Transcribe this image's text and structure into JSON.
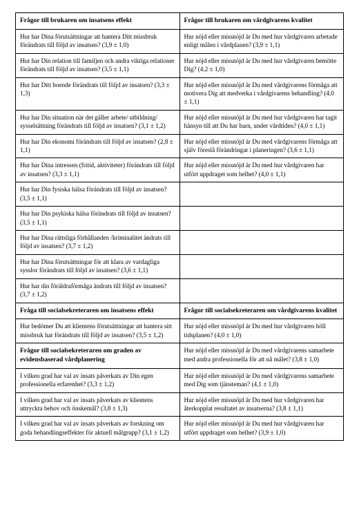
{
  "table": {
    "section1": {
      "header_left": "Frågor till brukaren om insatsens effekt",
      "header_right": "Frågor till brukaren om vårdgivarens kvalitet",
      "rows": [
        {
          "left": "Hur har Dina förutsättningar att hantera Ditt miss­bruk förändrats till följd av insatsen? (3,9 ± 1,0)",
          "right": "Hur nöjd eller missnöjd är Du med hur vårdgiva­ren arbetade enligt målen i vårdplanen? (3,9 ± 1,1)"
        },
        {
          "left": "Hur har Din relation till familjen och andra viktiga relationer förändrats till följd av insatsen? (3,5 ± 1,1)",
          "right": "Hur nöjd eller missnöjd är Du med hur vårdgiva­ren bemötte Dig? (4,2 ± 1,0)"
        },
        {
          "left": "Hur har Ditt boende förändrats till följd av insatsen? (3,3 ± 1,3)",
          "right": "Hur nöjd eller missnöjd är Du med vårdgivarens förmåga att motivera Dig att medverka i vårdgiva­rens behandling? (4,0 ± 1,1)"
        },
        {
          "left": "Hur har Din situation när det gäller arbete/ utbildning/ sysselsättning förändrats till följd av insatsen? (3,1 ± 1,2)",
          "right": "Hur nöjd eller missnöjd är Du med hur vårdgi­varen har tagit hänsyn till att Du har barn, under vårdtiden? (4,0 ± 1,1)"
        },
        {
          "left": "Hur har Din ekonomi förändrats till följd av insatsen? (2,8 ± 1,1)",
          "right": "Hur nöjd eller missnöjd är Du med vårdgivarens förmåga att själv föreslå förändringar i plane­ringen? (3,6 ± 1,1)"
        },
        {
          "left": "Hur har Dina intressen (fritid, aktiviteter) föränd­rats till följd av insatsen? (3,3 ± 1,1)",
          "right": "Hur nöjd eller missnöjd är Du med hur vårdgiva­ren har utfört uppdraget som helhet? (4,0 ± 1,1)"
        },
        {
          "left": "Hur har Din fysiska hälsa förändrats till följd av insatsen? (3,5 ± 1,1)",
          "right": ""
        },
        {
          "left": "Hur har Din psykiska hälsa förändrats till följd av insatsen? (3,5 ± 1,1)",
          "right": ""
        },
        {
          "left": "Hur har Dina rättsliga förhållanden /kriminalitet ändrats till följd av insatsen? (3,7 ± 1,2)",
          "right": ""
        },
        {
          "left": "Hur har Dina förutsättningar för att klara av vardagliga sysslor förändrats till följd av insatsen? (3,6 ± 1,1)",
          "right": ""
        },
        {
          "left": "Hur har din föräldraförmåga ändrats till följd av insatsen? (3,7 ± 1,2)",
          "right": ""
        }
      ]
    },
    "section2": {
      "header_left": "Fråga till socialsekreteraren om insatsens effekt",
      "header_right": "Frågor till socialsekreteraren om vårdgivarens kvalitet",
      "rows": [
        {
          "left": "Hur bedömer Du att klientens förutsättningar att hantera sitt missbruk har förändrats till följd av insatsen? (3,5 ± 1,2)",
          "right": "Hur nöjd eller missnöjd är Du med hur vårdgiva­ren höll tidsplanen?  (4,0 ± 1,0)"
        }
      ]
    },
    "section3": {
      "header_left": "Frågor till socialsekreteraren om graden av evidensbaserad vårdplanering",
      "rows": [
        {
          "left": "",
          "right": "Hur nöjd eller missnöjd är Du med vårdgivarens samarbete med andra professionella för att nå målet? (3,8 ± 1,0)"
        },
        {
          "left": "I vilken grad har val av insats påverkats av Din egen professionella erfarenhet? (3,3 ± 1,2)",
          "right": "Hur nöjd eller missnöjd är Du med vårdgivarens samarbete med Dig som tjänsteman? (4,1 ± 1,0)"
        },
        {
          "left": "I vilken grad har val av insats påverkats av klientens uttryckta behov och önskemål? (3,8 ± 1,3)",
          "right": "Hur nöjd eller missnöjd är Du med hur vårdgiva­ren har återkopplat resultatet av insatserna? (3,8 ± 1,1)"
        },
        {
          "left": "I vilken grad har val av insats påverkats av forskning om goda behandlingseffekter för aktuell målgrupp? (3,1 ± 1,2)",
          "right": "Hur nöjd eller missnöjd är Du med hur vårdgiva­ren har utfört uppdraget som helhet? (3,9 ± 1,0)"
        }
      ]
    }
  }
}
